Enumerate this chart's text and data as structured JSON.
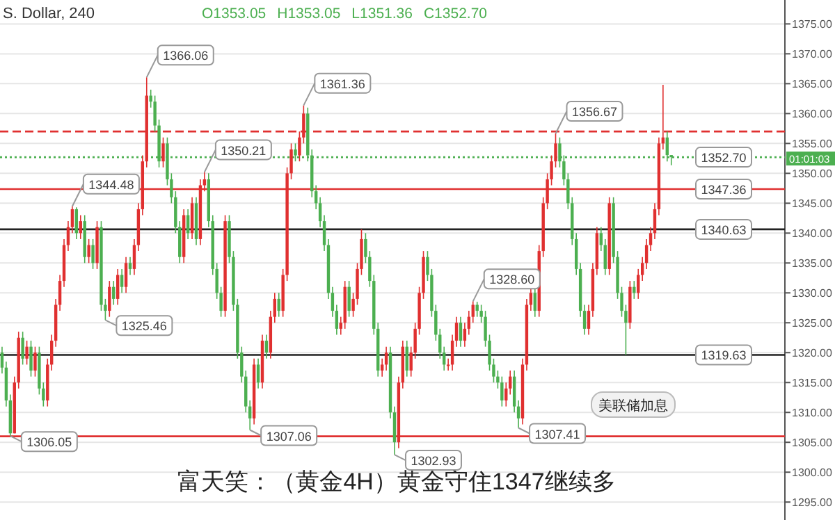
{
  "chart_data": {
    "type": "candlestick",
    "title": "S. Dollar, 240",
    "annotations": [
      "O1353.05",
      "H1353.05",
      "L1351.36",
      "C1352.70",
      "富天笑：（黄金4H）黄金守住1347继续多",
      "美联储加息",
      "01:01:03",
      "1366.06",
      "1344.48",
      "1325.46",
      "1306.05",
      "1350.21",
      "1307.06",
      "1361.36",
      "1302.93",
      "1328.60",
      "1307.41",
      "1356.67"
    ],
    "categories": [
      null,
      null,
      null,
      null,
      null,
      null,
      null,
      null,
      null,
      null,
      null,
      null,
      null,
      null,
      null,
      null,
      null,
      null,
      null,
      null,
      null,
      null,
      null,
      null,
      null,
      null,
      null,
      null,
      null,
      null,
      null,
      null,
      null,
      null,
      null,
      null,
      null,
      null,
      null,
      null,
      null,
      null,
      null,
      null,
      null,
      null,
      null,
      null,
      null,
      null,
      null,
      null,
      null,
      null,
      null,
      null,
      null,
      null,
      null,
      null,
      null,
      null,
      null,
      null,
      null,
      null,
      null,
      null,
      null,
      null,
      null,
      null,
      null,
      null,
      null,
      null,
      null,
      null,
      null,
      null,
      null,
      null,
      null,
      null,
      null,
      null,
      null,
      null,
      null,
      null,
      null,
      null,
      null,
      null,
      null,
      null,
      null,
      null,
      null,
      null,
      null,
      null,
      null,
      null,
      null,
      null,
      null,
      null,
      null,
      null,
      null,
      null,
      null,
      null,
      null,
      null,
      null,
      null,
      null,
      null,
      null,
      null,
      null,
      null,
      null,
      null,
      null,
      null,
      null,
      null,
      null,
      null,
      null,
      null,
      null,
      null,
      null,
      null,
      null,
      null,
      null,
      null,
      null,
      null,
      null,
      null,
      null,
      null,
      null,
      null,
      null,
      null,
      null,
      null,
      null,
      null,
      null,
      null,
      null,
      null,
      null,
      null,
      null,
      null,
      null,
      null,
      null,
      null,
      null,
      null,
      null,
      null,
      null,
      null,
      null,
      null,
      null,
      null,
      null,
      null,
      null,
      null,
      null,
      null,
      null,
      null,
      null,
      null,
      null,
      null
    ],
    "ohlc": [
      [
        1320,
        1321,
        1316.5,
        1317.5
      ],
      [
        1317.5,
        1318.5,
        1311,
        1312
      ],
      [
        1312,
        1313,
        1306.05,
        1306.5
      ],
      [
        1306.5,
        1316,
        1306.5,
        1315
      ],
      [
        1315,
        1323.5,
        1314,
        1322.5
      ],
      [
        1322.5,
        1323.5,
        1318,
        1319
      ],
      [
        1319,
        1322,
        1318,
        1321
      ],
      [
        1321,
        1322,
        1316,
        1317
      ],
      [
        1317,
        1321,
        1316,
        1320
      ],
      [
        1320,
        1321,
        1313,
        1314
      ],
      [
        1314,
        1315,
        1311,
        1312
      ],
      [
        1312,
        1319,
        1311,
        1318
      ],
      [
        1318,
        1323,
        1317,
        1322
      ],
      [
        1322,
        1329,
        1321,
        1328
      ],
      [
        1328,
        1333,
        1327,
        1332
      ],
      [
        1332,
        1339,
        1331,
        1338
      ],
      [
        1338,
        1342,
        1337,
        1341
      ],
      [
        1341,
        1344.48,
        1340,
        1344
      ],
      [
        1344,
        1344.3,
        1339,
        1340
      ],
      [
        1340,
        1343,
        1339,
        1342
      ],
      [
        1342,
        1343,
        1335,
        1336
      ],
      [
        1336,
        1339,
        1335,
        1338
      ],
      [
        1338,
        1339,
        1334,
        1335
      ],
      [
        1335,
        1342,
        1334,
        1341
      ],
      [
        1341,
        1342,
        1327,
        1328
      ],
      [
        1328,
        1329,
        1325.46,
        1327
      ],
      [
        1327,
        1332,
        1326,
        1331
      ],
      [
        1331,
        1332,
        1328,
        1329
      ],
      [
        1329,
        1334,
        1328,
        1333
      ],
      [
        1333,
        1334,
        1330,
        1331
      ],
      [
        1331,
        1336,
        1330,
        1335
      ],
      [
        1335,
        1336,
        1333,
        1334
      ],
      [
        1334,
        1339,
        1333,
        1338
      ],
      [
        1338,
        1345,
        1337,
        1344
      ],
      [
        1344,
        1353,
        1343,
        1352
      ],
      [
        1352,
        1366.06,
        1351,
        1363
      ],
      [
        1363,
        1364,
        1361,
        1362
      ],
      [
        1362,
        1363,
        1357,
        1358
      ],
      [
        1358,
        1359,
        1351,
        1352
      ],
      [
        1352,
        1356,
        1351,
        1355
      ],
      [
        1355,
        1356,
        1348,
        1349
      ],
      [
        1349,
        1350,
        1345,
        1346
      ],
      [
        1346,
        1347,
        1340,
        1341
      ],
      [
        1341,
        1342,
        1335,
        1336
      ],
      [
        1336,
        1344,
        1335,
        1343
      ],
      [
        1343,
        1344,
        1339,
        1340
      ],
      [
        1340,
        1346,
        1339,
        1345
      ],
      [
        1345,
        1346,
        1338,
        1339
      ],
      [
        1339,
        1349,
        1338,
        1348
      ],
      [
        1348,
        1350.21,
        1347,
        1349
      ],
      [
        1349,
        1350,
        1341,
        1342
      ],
      [
        1342,
        1343,
        1333,
        1334
      ],
      [
        1334,
        1335,
        1329,
        1330
      ],
      [
        1330,
        1331,
        1326,
        1327
      ],
      [
        1327,
        1343,
        1326,
        1342
      ],
      [
        1342,
        1343,
        1335,
        1336
      ],
      [
        1336,
        1337,
        1327,
        1328
      ],
      [
        1328,
        1329,
        1319,
        1320
      ],
      [
        1320,
        1321,
        1315,
        1316
      ],
      [
        1316,
        1317,
        1310,
        1311
      ],
      [
        1311,
        1312,
        1307.06,
        1309
      ],
      [
        1309,
        1319,
        1308,
        1318
      ],
      [
        1318,
        1319,
        1314,
        1315
      ],
      [
        1315,
        1323,
        1314,
        1322
      ],
      [
        1322,
        1323,
        1319,
        1320
      ],
      [
        1320,
        1327,
        1319,
        1326
      ],
      [
        1326,
        1330,
        1325,
        1329
      ],
      [
        1329,
        1330,
        1326,
        1327
      ],
      [
        1327,
        1334,
        1326,
        1333
      ],
      [
        1333,
        1351,
        1332,
        1350
      ],
      [
        1350,
        1355,
        1349,
        1354
      ],
      [
        1354,
        1355,
        1352,
        1353
      ],
      [
        1353,
        1357,
        1352,
        1356
      ],
      [
        1356,
        1361.36,
        1355,
        1360
      ],
      [
        1360,
        1361,
        1352,
        1353
      ],
      [
        1353,
        1354,
        1346,
        1347
      ],
      [
        1347,
        1348,
        1344,
        1345
      ],
      [
        1345,
        1346,
        1341,
        1342
      ],
      [
        1342,
        1343,
        1337,
        1338
      ],
      [
        1338,
        1339,
        1329,
        1330
      ],
      [
        1330,
        1331,
        1326,
        1327
      ],
      [
        1327,
        1328,
        1323,
        1324
      ],
      [
        1324,
        1326,
        1323,
        1325
      ],
      [
        1325,
        1332,
        1324,
        1331
      ],
      [
        1331,
        1332,
        1326,
        1327
      ],
      [
        1327,
        1330,
        1326,
        1329
      ],
      [
        1329,
        1335,
        1328,
        1334
      ],
      [
        1334,
        1340.63,
        1333,
        1339
      ],
      [
        1339,
        1340,
        1335,
        1336
      ],
      [
        1336,
        1337,
        1331,
        1332
      ],
      [
        1332,
        1333,
        1323,
        1324
      ],
      [
        1324,
        1325,
        1316,
        1317
      ],
      [
        1317,
        1319,
        1316,
        1318
      ],
      [
        1318,
        1321,
        1317,
        1320
      ],
      [
        1320,
        1321,
        1309,
        1310
      ],
      [
        1310,
        1311,
        1302.93,
        1305
      ],
      [
        1305,
        1316,
        1304,
        1315
      ],
      [
        1315,
        1322,
        1314,
        1321
      ],
      [
        1321,
        1322,
        1316,
        1317
      ],
      [
        1317,
        1321,
        1316,
        1320
      ],
      [
        1320,
        1325,
        1319,
        1324
      ],
      [
        1324,
        1331,
        1323,
        1330
      ],
      [
        1330,
        1337,
        1329,
        1336
      ],
      [
        1336,
        1337,
        1332,
        1333
      ],
      [
        1333,
        1334,
        1326,
        1327
      ],
      [
        1327,
        1328,
        1322,
        1323
      ],
      [
        1323,
        1324,
        1319,
        1320
      ],
      [
        1320,
        1321,
        1317,
        1318
      ],
      [
        1318,
        1319,
        1317,
        1318
      ],
      [
        1318,
        1323,
        1317,
        1322
      ],
      [
        1322,
        1326,
        1321,
        1325
      ],
      [
        1325,
        1326,
        1321,
        1322
      ],
      [
        1322,
        1325,
        1321,
        1324
      ],
      [
        1324,
        1327,
        1323,
        1326
      ],
      [
        1326,
        1328.6,
        1325,
        1328
      ],
      [
        1328,
        1328.5,
        1326,
        1327
      ],
      [
        1327,
        1328,
        1325,
        1326
      ],
      [
        1326,
        1327,
        1321,
        1322
      ],
      [
        1322,
        1323,
        1317,
        1318
      ],
      [
        1318,
        1319,
        1315,
        1316
      ],
      [
        1316,
        1317,
        1314,
        1315
      ],
      [
        1315,
        1316,
        1311,
        1312
      ],
      [
        1312,
        1315,
        1311,
        1314
      ],
      [
        1314,
        1317,
        1313,
        1316
      ],
      [
        1316,
        1317,
        1310,
        1311
      ],
      [
        1311,
        1312,
        1307.41,
        1309
      ],
      [
        1309,
        1319,
        1308,
        1318
      ],
      [
        1318,
        1329,
        1317,
        1328
      ],
      [
        1328,
        1331,
        1327,
        1330
      ],
      [
        1330,
        1331,
        1326,
        1327
      ],
      [
        1327,
        1338,
        1326,
        1337
      ],
      [
        1337,
        1346,
        1336,
        1345
      ],
      [
        1345,
        1350,
        1344,
        1349
      ],
      [
        1349,
        1353,
        1348,
        1352
      ],
      [
        1352,
        1356.67,
        1351,
        1355
      ],
      [
        1355,
        1356,
        1351,
        1352
      ],
      [
        1352,
        1353,
        1348,
        1349
      ],
      [
        1349,
        1350,
        1344,
        1345
      ],
      [
        1345,
        1346,
        1338,
        1339
      ],
      [
        1339,
        1340,
        1333,
        1334
      ],
      [
        1334,
        1335,
        1326,
        1327
      ],
      [
        1327,
        1328,
        1323,
        1324
      ],
      [
        1324,
        1328,
        1323,
        1327
      ],
      [
        1327,
        1335,
        1326,
        1334
      ],
      [
        1334,
        1341,
        1333,
        1340
      ],
      [
        1340,
        1341,
        1337,
        1338
      ],
      [
        1338,
        1339,
        1333,
        1334
      ],
      [
        1334,
        1346,
        1333,
        1345
      ],
      [
        1345,
        1346,
        1335,
        1336
      ],
      [
        1336,
        1337,
        1329,
        1330
      ],
      [
        1330,
        1331,
        1326,
        1327
      ],
      [
        1327,
        1328,
        1319.63,
        1325
      ],
      [
        1325,
        1332,
        1324,
        1331
      ],
      [
        1331,
        1332,
        1329,
        1330
      ],
      [
        1330,
        1334,
        1329,
        1333
      ],
      [
        1333,
        1336,
        1332,
        1335
      ],
      [
        1335,
        1339,
        1334,
        1338
      ],
      [
        1338,
        1341,
        1337,
        1340
      ],
      [
        1340,
        1345,
        1339,
        1344
      ],
      [
        1344,
        1356,
        1343,
        1355
      ],
      [
        1355,
        1364.8,
        1354,
        1356
      ],
      [
        1356,
        1357,
        1352,
        1353.05
      ],
      [
        1353.05,
        1353.05,
        1351.36,
        1352.7
      ],
      null,
      null,
      null,
      null,
      null,
      null,
      null,
      null,
      null,
      null,
      null,
      null,
      null,
      null,
      null,
      null,
      null,
      null,
      null,
      null,
      null,
      null,
      null,
      null,
      null,
      null,
      null
    ],
    "ylim": [
      1292,
      1379
    ],
    "yticks": [
      {
        "value": 1295,
        "label": "1295.00"
      },
      {
        "value": 1300,
        "label": "1300.00"
      },
      {
        "value": 1305,
        "label": "1305.00"
      },
      {
        "value": 1310,
        "label": "1310.00"
      },
      {
        "value": 1315,
        "label": "1315.00"
      },
      {
        "value": 1320,
        "label": "1320.00"
      },
      {
        "value": 1325,
        "label": "1325.00"
      },
      {
        "value": 1330,
        "label": "1330.00"
      },
      {
        "value": 1335,
        "label": "1335.00"
      },
      {
        "value": 1340,
        "label": "1340.00"
      },
      {
        "value": 1345,
        "label": "1345.00"
      },
      {
        "value": 1350,
        "label": "1350.00"
      },
      {
        "value": 1355,
        "label": "1355.00"
      },
      {
        "value": 1360,
        "label": "1360.00"
      },
      {
        "value": 1365,
        "label": "1365.00"
      },
      {
        "value": 1370,
        "label": "1370.00"
      },
      {
        "value": 1375,
        "label": "1375.00"
      }
    ],
    "tick_labels": "y",
    "grid": "y",
    "ref_lines": [
      {
        "axis": "y",
        "value": 1306,
        "color": "#e03030"
      },
      {
        "axis": "y",
        "value": 1357,
        "color": "#e03030",
        "line_style": "dashed"
      },
      {
        "axis": "y",
        "value": 1347.36,
        "label": "1347.36",
        "color": "#e03030"
      },
      {
        "axis": "y",
        "value": 1352.7,
        "label": "1352.70",
        "color": "#4caf50",
        "line_style": "dotted"
      },
      {
        "axis": "y",
        "value": 1340.63,
        "label": "1340.63",
        "color": "#222222"
      },
      {
        "axis": "y",
        "value": 1319.63,
        "label": "1319.63",
        "color": "#222222"
      }
    ]
  }
}
